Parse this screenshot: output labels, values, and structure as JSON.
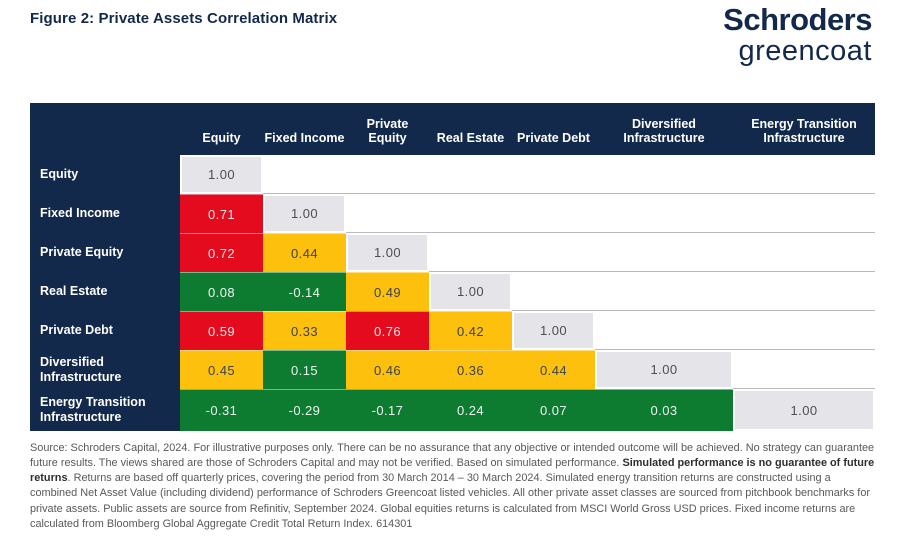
{
  "page": {
    "title": "Figure 2: Private Assets Correlation Matrix"
  },
  "logo": {
    "primary": "Schroders",
    "secondary": "greencoat"
  },
  "colors": {
    "navy": "#13294B",
    "red": "#E40B1E",
    "amber": "#FDC10D",
    "green": "#0D7C31",
    "gray": "#E5E5E9"
  },
  "chart_data": {
    "type": "heatmap",
    "title": "Figure 2: Private Assets Correlation Matrix",
    "categories": [
      "Equity",
      "Fixed Income",
      "Private Equity",
      "Real Estate",
      "Private Debt",
      "Diversified Infrastructure",
      "Energy Transition Infrastructure"
    ],
    "matrix": [
      [
        1.0
      ],
      [
        0.71,
        1.0
      ],
      [
        0.72,
        0.44,
        1.0
      ],
      [
        0.08,
        -0.14,
        0.49,
        1.0
      ],
      [
        0.59,
        0.33,
        0.76,
        0.42,
        1.0
      ],
      [
        0.45,
        0.15,
        0.46,
        0.36,
        0.44,
        1.0
      ],
      [
        -0.31,
        -0.29,
        -0.17,
        0.24,
        0.07,
        0.03,
        1.0
      ]
    ],
    "cell_colors": [
      [
        "gray"
      ],
      [
        "red",
        "gray"
      ],
      [
        "red",
        "amber",
        "gray"
      ],
      [
        "green",
        "green",
        "amber",
        "gray"
      ],
      [
        "red",
        "amber",
        "red",
        "amber",
        "gray"
      ],
      [
        "amber",
        "green",
        "amber",
        "amber",
        "amber",
        "gray"
      ],
      [
        "green",
        "green",
        "green",
        "green",
        "green",
        "green",
        "gray"
      ]
    ],
    "layout": "lower-triangle",
    "value_format": "2dp"
  },
  "footnote": {
    "pre": "Source: Schroders Capital, 2024. For illustrative purposes only. There can be no assurance that any objective or intended outcome will be achieved. No strategy can guarantee future results. The views shared are those of Schroders Capital and may not be verified. Based on simulated performance. ",
    "bold": "Simulated performance is no guarantee of future returns",
    "post": ". Returns are based off quarterly prices, covering the period from 30 March 2014 – 30 March 2024. Simulated energy transition returns are constructed using a combined Net Asset Value (including dividend) performance of Schroders Greencoat listed vehicles. All other private asset classes are sourced from pitchbook benchmarks for private assets. Public assets are source from Refinitiv, September 2024. Global equities returns is calculated from MSCI World Gross USD prices. Fixed income returns are calculated from Bloomberg Global Aggregate Credit Total Return Index. 614301"
  }
}
